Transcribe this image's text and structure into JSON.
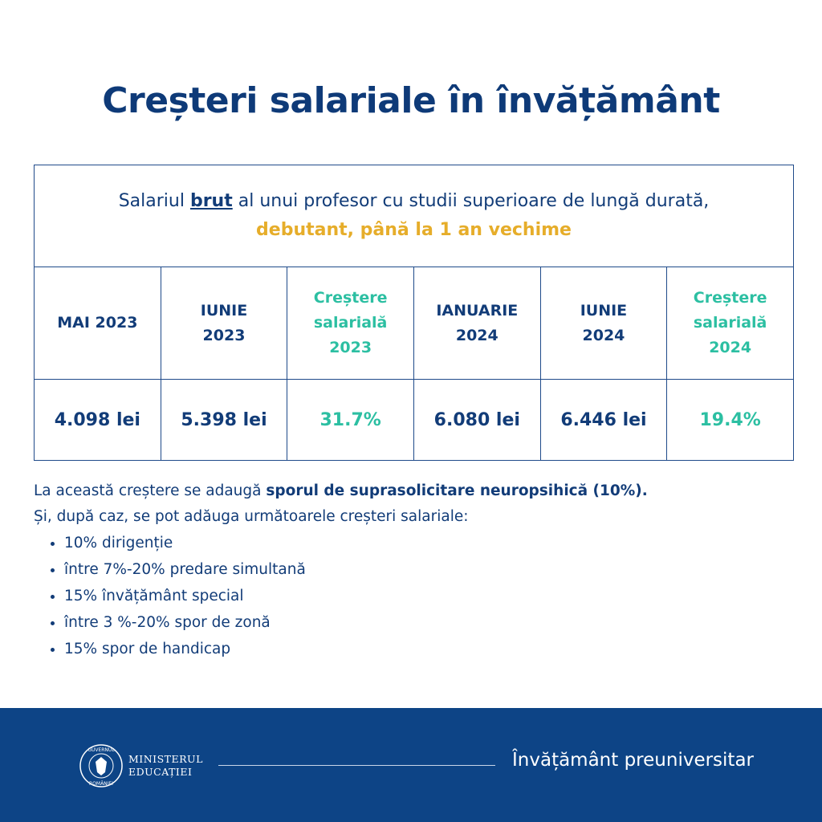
{
  "title": "Creșteri salariale în învățământ",
  "table": {
    "caption": {
      "before": "Salariul",
      "emphasis": "brut",
      "middle": "al unui profesor cu studii superioare de lungă durată,",
      "highlight": "debutant, până la 1 an vechime"
    },
    "headers": [
      [
        "MAI 2023"
      ],
      [
        "IUNIE",
        "2023"
      ],
      [
        "Creștere",
        "salarială",
        "2023"
      ],
      [
        "IANUARIE",
        "2024"
      ],
      [
        "IUNIE",
        "2024"
      ],
      [
        "Creștere",
        "salarială",
        "2024"
      ]
    ],
    "rows": [
      [
        "4.098 lei",
        "5.398 lei",
        "31.7%",
        "6.080 lei",
        "6.446 lei",
        "19.4%"
      ]
    ]
  },
  "notes": {
    "line1": {
      "text": "La această creștere se adaugă",
      "bold": "sporul de suprasolicitare neuropsihică (10%)."
    },
    "line2": "Și, după caz, se pot adăuga următoarele creșteri salariale:",
    "bullets": [
      "10% dirigenție",
      "între 7%-20% predare simultană",
      "15% învățământ special",
      "între 3 %-20% spor de zonă",
      "15% spor de handicap"
    ]
  },
  "footer": {
    "seal": [
      "GUVERNUL",
      "ROMÂNIEI"
    ],
    "ministry": [
      "MINISTERUL",
      "EDUCAȚIEI"
    ],
    "tagline": "Învățământ preuniversitar"
  }
}
